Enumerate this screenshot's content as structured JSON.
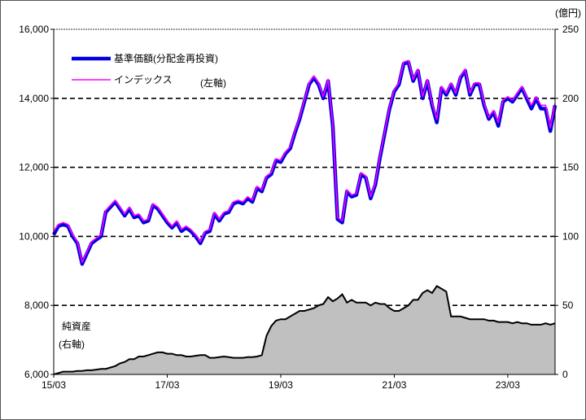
{
  "chart_data": {
    "type": "line",
    "title": "",
    "unit_right": "(億円)",
    "left_axis": {
      "ylim": [
        6000,
        16000
      ],
      "ticks": [
        "6,000",
        "8,000",
        "10,000",
        "12,000",
        "14,000",
        "16,000"
      ]
    },
    "right_axis": {
      "ylim": [
        0,
        250
      ],
      "ticks": [
        "0",
        "50",
        "100",
        "150",
        "200",
        "250"
      ]
    },
    "x_ticks": [
      "15/03",
      "17/03",
      "19/03",
      "21/03",
      "23/03"
    ],
    "annotations": {
      "left_axis_note": "(左軸)",
      "area_label": "純資産",
      "area_axis_note": "(右軸)"
    },
    "gridlines": [
      8000,
      10000,
      12000,
      14000
    ],
    "colors": {
      "nav": "#0000e0",
      "index": "#ff00ff",
      "area": "#c0c0c0"
    },
    "legend": [
      {
        "label": "基準価額(分配金再投資)",
        "color": "#0000e0"
      },
      {
        "label": "インデックス",
        "color": "#ff00ff"
      }
    ],
    "series": [
      {
        "name": "基準価額(分配金再投資)",
        "axis": "left",
        "values": [
          [
            0,
            10050
          ],
          [
            1,
            10300
          ],
          [
            2,
            10350
          ],
          [
            3,
            10300
          ],
          [
            4,
            10000
          ],
          [
            5,
            9800
          ],
          [
            6,
            9200
          ],
          [
            7,
            9500
          ],
          [
            8,
            9800
          ],
          [
            9,
            9900
          ],
          [
            10,
            10000
          ],
          [
            11,
            10700
          ],
          [
            12,
            10850
          ],
          [
            13,
            11000
          ],
          [
            14,
            10800
          ],
          [
            15,
            10600
          ],
          [
            16,
            10800
          ],
          [
            17,
            10550
          ],
          [
            18,
            10600
          ],
          [
            19,
            10400
          ],
          [
            20,
            10450
          ],
          [
            21,
            10900
          ],
          [
            22,
            10800
          ],
          [
            23,
            10600
          ],
          [
            24,
            10400
          ],
          [
            25,
            10250
          ],
          [
            26,
            10400
          ],
          [
            27,
            10150
          ],
          [
            28,
            10250
          ],
          [
            29,
            10150
          ],
          [
            30,
            10000
          ],
          [
            31,
            9800
          ],
          [
            32,
            10100
          ],
          [
            33,
            10150
          ],
          [
            34,
            10650
          ],
          [
            35,
            10450
          ],
          [
            36,
            10650
          ],
          [
            37,
            10700
          ],
          [
            38,
            10950
          ],
          [
            39,
            11000
          ],
          [
            40,
            10950
          ],
          [
            41,
            11100
          ],
          [
            42,
            11000
          ],
          [
            43,
            11400
          ],
          [
            44,
            11300
          ],
          [
            45,
            11700
          ],
          [
            46,
            11800
          ],
          [
            47,
            12200
          ],
          [
            48,
            12150
          ],
          [
            49,
            12400
          ],
          [
            50,
            12550
          ],
          [
            51,
            13000
          ],
          [
            52,
            13400
          ],
          [
            53,
            13900
          ],
          [
            54,
            14400
          ],
          [
            55,
            14600
          ],
          [
            56,
            14400
          ],
          [
            57,
            14000
          ],
          [
            58,
            14500
          ],
          [
            59,
            13200
          ],
          [
            60,
            10500
          ],
          [
            61,
            10400
          ],
          [
            62,
            11300
          ],
          [
            63,
            11150
          ],
          [
            64,
            11200
          ],
          [
            65,
            11800
          ],
          [
            66,
            11700
          ],
          [
            67,
            11100
          ],
          [
            68,
            11500
          ],
          [
            69,
            12300
          ],
          [
            70,
            13000
          ],
          [
            71,
            13700
          ],
          [
            72,
            14200
          ],
          [
            73,
            14400
          ],
          [
            74,
            15000
          ],
          [
            75,
            15050
          ],
          [
            76,
            14500
          ],
          [
            77,
            14800
          ],
          [
            78,
            14000
          ],
          [
            79,
            14500
          ],
          [
            80,
            13800
          ],
          [
            81,
            13300
          ],
          [
            82,
            14300
          ],
          [
            83,
            14100
          ],
          [
            84,
            14400
          ],
          [
            85,
            14100
          ],
          [
            86,
            14600
          ],
          [
            87,
            14800
          ],
          [
            88,
            14100
          ],
          [
            89,
            14400
          ],
          [
            90,
            14400
          ],
          [
            91,
            13800
          ],
          [
            92,
            13400
          ],
          [
            93,
            13600
          ],
          [
            94,
            13200
          ],
          [
            95,
            13900
          ],
          [
            96,
            14000
          ],
          [
            97,
            13900
          ],
          [
            98,
            14100
          ],
          [
            99,
            14300
          ],
          [
            100,
            14000
          ],
          [
            101,
            13700
          ],
          [
            102,
            14000
          ],
          [
            103,
            13700
          ],
          [
            104,
            13700
          ],
          [
            105,
            13050
          ],
          [
            106,
            13800
          ]
        ]
      },
      {
        "name": "インデックス",
        "axis": "left",
        "values": [
          [
            0,
            10150
          ],
          [
            1,
            10350
          ],
          [
            2,
            10400
          ],
          [
            3,
            10350
          ],
          [
            4,
            10050
          ],
          [
            5,
            9850
          ],
          [
            6,
            9250
          ],
          [
            7,
            9550
          ],
          [
            8,
            9850
          ],
          [
            9,
            9950
          ],
          [
            10,
            10050
          ],
          [
            11,
            10750
          ],
          [
            12,
            10900
          ],
          [
            13,
            11050
          ],
          [
            14,
            10850
          ],
          [
            15,
            10650
          ],
          [
            16,
            10850
          ],
          [
            17,
            10600
          ],
          [
            18,
            10650
          ],
          [
            19,
            10450
          ],
          [
            20,
            10500
          ],
          [
            21,
            10950
          ],
          [
            22,
            10850
          ],
          [
            23,
            10650
          ],
          [
            24,
            10450
          ],
          [
            25,
            10300
          ],
          [
            26,
            10450
          ],
          [
            27,
            10200
          ],
          [
            28,
            10300
          ],
          [
            29,
            10200
          ],
          [
            30,
            10050
          ],
          [
            31,
            9850
          ],
          [
            32,
            10150
          ],
          [
            33,
            10200
          ],
          [
            34,
            10700
          ],
          [
            35,
            10500
          ],
          [
            36,
            10700
          ],
          [
            37,
            10750
          ],
          [
            38,
            11000
          ],
          [
            39,
            11050
          ],
          [
            40,
            11000
          ],
          [
            41,
            11150
          ],
          [
            42,
            11050
          ],
          [
            43,
            11450
          ],
          [
            44,
            11350
          ],
          [
            45,
            11750
          ],
          [
            46,
            11850
          ],
          [
            47,
            12250
          ],
          [
            48,
            12200
          ],
          [
            49,
            12450
          ],
          [
            50,
            12600
          ],
          [
            51,
            13050
          ],
          [
            52,
            13450
          ],
          [
            53,
            13950
          ],
          [
            54,
            14450
          ],
          [
            55,
            14650
          ],
          [
            56,
            14450
          ],
          [
            57,
            14050
          ],
          [
            58,
            14550
          ],
          [
            59,
            13250
          ],
          [
            60,
            10550
          ],
          [
            61,
            10450
          ],
          [
            62,
            11350
          ],
          [
            63,
            11200
          ],
          [
            64,
            11250
          ],
          [
            65,
            11850
          ],
          [
            66,
            11750
          ],
          [
            67,
            11150
          ],
          [
            68,
            11550
          ],
          [
            69,
            12350
          ],
          [
            70,
            13050
          ],
          [
            71,
            13750
          ],
          [
            72,
            14250
          ],
          [
            73,
            14450
          ],
          [
            74,
            15050
          ],
          [
            75,
            15100
          ],
          [
            76,
            14550
          ],
          [
            77,
            14850
          ],
          [
            78,
            14050
          ],
          [
            79,
            14550
          ],
          [
            80,
            13850
          ],
          [
            81,
            13400
          ],
          [
            82,
            14350
          ],
          [
            83,
            14150
          ],
          [
            84,
            14450
          ],
          [
            85,
            14150
          ],
          [
            86,
            14650
          ],
          [
            87,
            14850
          ],
          [
            88,
            14150
          ],
          [
            89,
            14450
          ],
          [
            90,
            14450
          ],
          [
            91,
            13850
          ],
          [
            92,
            13450
          ],
          [
            93,
            13650
          ],
          [
            94,
            13300
          ],
          [
            95,
            13950
          ],
          [
            96,
            14050
          ],
          [
            97,
            13950
          ],
          [
            98,
            14150
          ],
          [
            99,
            14350
          ],
          [
            100,
            14050
          ],
          [
            101,
            13800
          ],
          [
            102,
            14050
          ],
          [
            103,
            13800
          ],
          [
            104,
            13800
          ],
          [
            105,
            13150
          ],
          [
            106,
            13850
          ]
        ]
      },
      {
        "name": "純資産",
        "axis": "right",
        "type": "area",
        "values": [
          [
            0,
            0
          ],
          [
            1,
            1
          ],
          [
            2,
            2
          ],
          [
            3,
            2
          ],
          [
            4,
            2
          ],
          [
            5,
            2.5
          ],
          [
            6,
            2.5
          ],
          [
            7,
            3
          ],
          [
            8,
            3
          ],
          [
            9,
            3.5
          ],
          [
            10,
            4
          ],
          [
            11,
            4
          ],
          [
            12,
            5
          ],
          [
            13,
            6
          ],
          [
            14,
            8
          ],
          [
            15,
            9
          ],
          [
            16,
            11
          ],
          [
            17,
            11
          ],
          [
            18,
            13
          ],
          [
            19,
            13
          ],
          [
            20,
            14
          ],
          [
            21,
            15
          ],
          [
            22,
            16
          ],
          [
            23,
            16
          ],
          [
            24,
            15
          ],
          [
            25,
            15
          ],
          [
            26,
            14
          ],
          [
            27,
            14
          ],
          [
            28,
            13
          ],
          [
            29,
            13
          ],
          [
            30,
            13.5
          ],
          [
            31,
            14
          ],
          [
            32,
            14
          ],
          [
            33,
            12
          ],
          [
            34,
            12
          ],
          [
            35,
            12.5
          ],
          [
            36,
            13
          ],
          [
            37,
            12.5
          ],
          [
            38,
            12
          ],
          [
            39,
            12
          ],
          [
            40,
            12
          ],
          [
            41,
            12.5
          ],
          [
            42,
            12.5
          ],
          [
            43,
            13
          ],
          [
            44,
            14
          ],
          [
            45,
            28
          ],
          [
            46,
            35
          ],
          [
            47,
            39
          ],
          [
            48,
            40
          ],
          [
            49,
            40
          ],
          [
            50,
            42
          ],
          [
            51,
            44
          ],
          [
            52,
            46
          ],
          [
            53,
            46
          ],
          [
            54,
            47
          ],
          [
            55,
            48
          ],
          [
            56,
            50
          ],
          [
            57,
            51
          ],
          [
            58,
            56
          ],
          [
            59,
            53
          ],
          [
            60,
            55
          ],
          [
            61,
            58
          ],
          [
            62,
            52
          ],
          [
            63,
            54
          ],
          [
            64,
            52
          ],
          [
            65,
            52
          ],
          [
            66,
            52
          ],
          [
            67,
            50
          ],
          [
            68,
            52
          ],
          [
            69,
            51
          ],
          [
            70,
            51
          ],
          [
            71,
            48
          ],
          [
            72,
            46
          ],
          [
            73,
            46
          ],
          [
            74,
            48
          ],
          [
            75,
            50
          ],
          [
            76,
            54
          ],
          [
            77,
            54
          ],
          [
            78,
            59
          ],
          [
            79,
            61
          ],
          [
            80,
            59
          ],
          [
            81,
            64
          ],
          [
            82,
            62
          ],
          [
            83,
            60
          ],
          [
            84,
            42
          ],
          [
            85,
            42
          ],
          [
            86,
            42
          ],
          [
            87,
            41
          ],
          [
            88,
            40
          ],
          [
            89,
            40
          ],
          [
            90,
            40
          ],
          [
            91,
            40
          ],
          [
            92,
            39
          ],
          [
            93,
            39
          ],
          [
            94,
            38
          ],
          [
            95,
            38
          ],
          [
            96,
            38
          ],
          [
            97,
            37
          ],
          [
            98,
            38
          ],
          [
            99,
            37
          ],
          [
            100,
            37
          ],
          [
            101,
            36
          ],
          [
            102,
            36
          ],
          [
            103,
            36
          ],
          [
            104,
            37
          ],
          [
            105,
            36
          ],
          [
            106,
            37
          ]
        ]
      }
    ]
  }
}
